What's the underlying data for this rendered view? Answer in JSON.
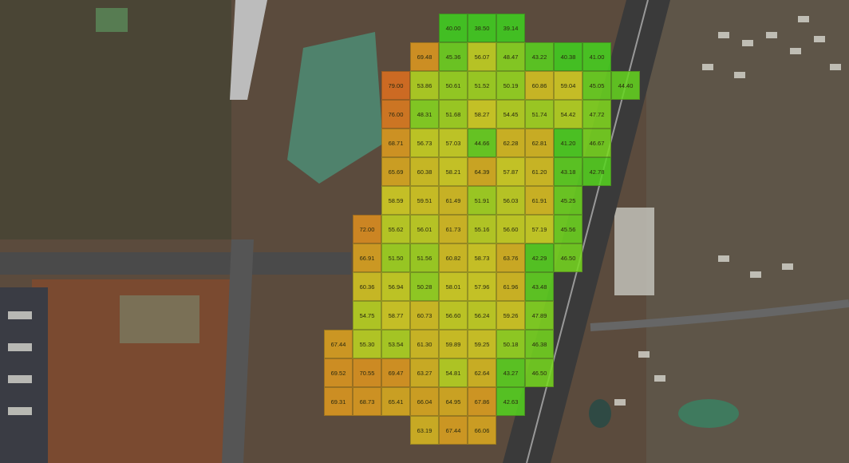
{
  "map": {
    "type": "satellite-heatmap-overlay",
    "color_scale": {
      "low": "#3ed21e",
      "mid": "#d6d622",
      "high": "#e0701e"
    }
  },
  "grid": {
    "rows": [
      [
        null,
        null,
        null,
        null,
        "40.00",
        "38.50",
        "39.14",
        null,
        null,
        null,
        null
      ],
      [
        null,
        null,
        null,
        "69.48",
        "45.36",
        "56.07",
        "48.47",
        "43.22",
        "40.38",
        "41.00",
        null
      ],
      [
        null,
        null,
        "79.00",
        "53.86",
        "50.61",
        "51.52",
        "50.19",
        "60.86",
        "59.04",
        "45.05",
        "44.40"
      ],
      [
        null,
        null,
        "76.00",
        "48.31",
        "51.68",
        "58.27",
        "54.45",
        "51.74",
        "54.42",
        "47.72",
        null
      ],
      [
        null,
        null,
        "68.71",
        "56.73",
        "57.03",
        "44.66",
        "62.28",
        "62.81",
        "41.20",
        "46.67",
        null
      ],
      [
        null,
        null,
        "65.69",
        "60.38",
        "58.21",
        "64.39",
        "57.87",
        "61.20",
        "43.18",
        "42.78",
        null
      ],
      [
        null,
        null,
        "58.59",
        "59.51",
        "61.49",
        "51.91",
        "56.03",
        "61.91",
        "45.25",
        null,
        null
      ],
      [
        null,
        "72.00",
        "55.62",
        "56.01",
        "61.73",
        "55.16",
        "56.60",
        "57.19",
        "45.56",
        null,
        null
      ],
      [
        null,
        "66.91",
        "51.50",
        "51.56",
        "60.82",
        "58.73",
        "63.76",
        "42.29",
        "46.50",
        null,
        null
      ],
      [
        null,
        "60.36",
        "56.94",
        "50.28",
        "58.01",
        "57.96",
        "61.96",
        "43.48",
        null,
        null,
        null
      ],
      [
        null,
        "54.75",
        "58.77",
        "60.73",
        "56.60",
        "56.24",
        "59.26",
        "47.89",
        null,
        null,
        null
      ],
      [
        "67.44",
        "55.30",
        "53.54",
        "61.30",
        "59.89",
        "59.25",
        "50.18",
        "46.38",
        null,
        null,
        null
      ],
      [
        "69.52",
        "70.55",
        "69.47",
        "63.27",
        "54.81",
        "62.64",
        "43.27",
        "46.50",
        null,
        null,
        null
      ],
      [
        "69.31",
        "68.73",
        "65.41",
        "66.04",
        "64.95",
        "67.86",
        "42.63",
        null,
        null,
        null,
        null
      ],
      [
        null,
        null,
        null,
        "63.19",
        "67.44",
        "66.06",
        null,
        null,
        null,
        null,
        null
      ]
    ]
  }
}
